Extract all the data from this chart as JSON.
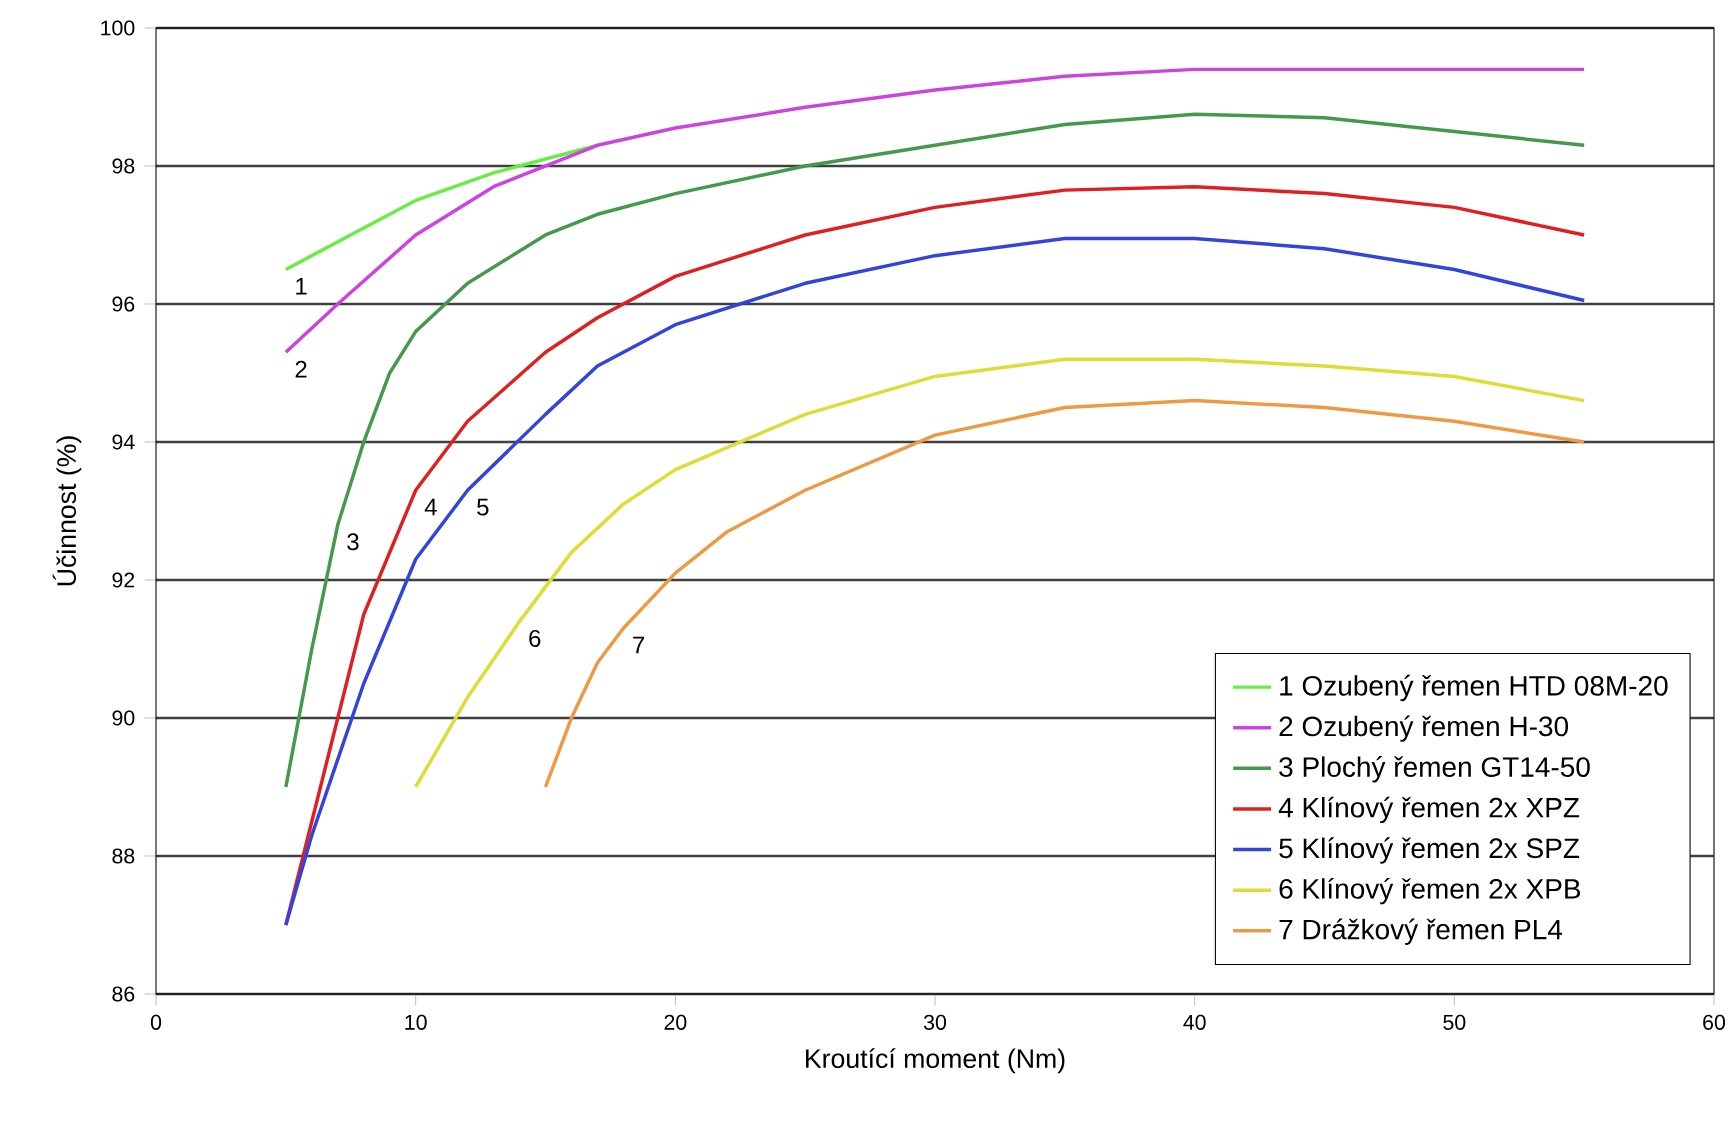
{
  "chart_data": {
    "type": "line",
    "xlabel": "Kroutící moment (Nm)",
    "ylabel": "Účinnost (%)",
    "xlim": [
      0,
      60
    ],
    "ylim": [
      86,
      100
    ],
    "xticks": [
      0,
      10,
      20,
      30,
      40,
      50,
      60
    ],
    "yticks": [
      86,
      88,
      90,
      92,
      94,
      96,
      98,
      100
    ],
    "grid": "y",
    "legend": "bottom right",
    "marker": "none",
    "line_style": "solid",
    "series": [
      {
        "name": "1  Ozubený řemen HTD 08M-20",
        "color": "#66ee44",
        "x": [
          5,
          8,
          10,
          13,
          17
        ],
        "values": [
          96.5,
          97.1,
          97.5,
          97.9,
          98.3
        ]
      },
      {
        "name": "2  Ozubený řemen H-30",
        "color": "#cc44dd",
        "x": [
          5,
          7,
          10,
          13,
          17,
          20,
          25,
          30,
          35,
          40,
          45,
          55
        ],
        "values": [
          95.3,
          96.0,
          97.0,
          97.7,
          98.3,
          98.55,
          98.85,
          99.1,
          99.3,
          99.4,
          99.4,
          99.4
        ]
      },
      {
        "name": "3  Plochý řemen GT14-50",
        "color": "#44994d",
        "x": [
          5,
          6,
          7,
          8,
          9,
          10,
          12,
          15,
          17,
          20,
          25,
          30,
          35,
          40,
          45,
          50,
          55
        ],
        "values": [
          89,
          91,
          92.8,
          94,
          95,
          95.6,
          96.3,
          97,
          97.3,
          97.6,
          98,
          98.3,
          98.6,
          98.75,
          98.7,
          98.5,
          98.3
        ]
      },
      {
        "name": "4  Klínový řemen 2x XPZ",
        "color": "#e02020",
        "x": [
          5,
          6,
          8,
          10,
          12,
          15,
          17,
          20,
          25,
          30,
          35,
          40,
          45,
          50,
          55
        ],
        "values": [
          87,
          88.5,
          91.5,
          93.3,
          94.3,
          95.3,
          95.8,
          96.4,
          97,
          97.4,
          97.65,
          97.7,
          97.6,
          97.4,
          97
        ]
      },
      {
        "name": "5  Klínový řemen 2x SPZ",
        "color": "#3344dd",
        "x": [
          5,
          6,
          8,
          10,
          12,
          15,
          17,
          20,
          25,
          30,
          35,
          40,
          45,
          50,
          55
        ],
        "values": [
          87,
          88.3,
          90.5,
          92.3,
          93.3,
          94.4,
          95.1,
          95.7,
          96.3,
          96.7,
          96.95,
          96.95,
          96.8,
          96.5,
          96.05
        ]
      },
      {
        "name": "6  Klínový řemen 2x XPB",
        "color": "#dddd33",
        "x": [
          10,
          12,
          14,
          16,
          18,
          20,
          25,
          30,
          35,
          40,
          45,
          50,
          55
        ],
        "values": [
          89,
          90.3,
          91.4,
          92.4,
          93.1,
          93.6,
          94.4,
          94.95,
          95.2,
          95.2,
          95.1,
          94.95,
          94.6
        ]
      },
      {
        "name": "7  Drážkový řemen PL4",
        "color": "#ee9944",
        "x": [
          15,
          16,
          17,
          18,
          20,
          22,
          25,
          30,
          35,
          40,
          45,
          50,
          55
        ],
        "values": [
          89,
          90,
          90.8,
          91.3,
          92.1,
          92.7,
          93.3,
          94.1,
          94.5,
          94.6,
          94.5,
          94.3,
          94.0
        ]
      }
    ],
    "annotations": [
      {
        "text": "1",
        "x": 5,
        "y": 96.5
      },
      {
        "text": "2",
        "x": 5,
        "y": 95.3
      },
      {
        "text": "3",
        "x": 7,
        "y": 92.8
      },
      {
        "text": "4",
        "x": 10,
        "y": 93.3
      },
      {
        "text": "5",
        "x": 12,
        "y": 93.3
      },
      {
        "text": "6",
        "x": 14,
        "y": 91.4
      },
      {
        "text": "7",
        "x": 18,
        "y": 91.3
      }
    ]
  }
}
